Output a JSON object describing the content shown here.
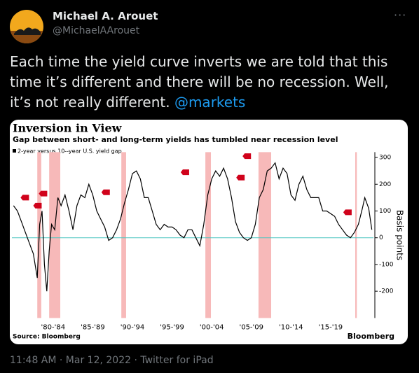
{
  "tweet": {
    "name": "Michael A. Arouet",
    "handle": "@MichaelAArouet",
    "text": "Each time the yield curve inverts we are told that this time it’s different and there will be no recession. Well, it’s not really different.",
    "link": "@markets",
    "footer": "11:48 AM · Mar 12, 2022 · Twitter for iPad"
  },
  "chart_data": {
    "type": "line",
    "title": "Inversion in View",
    "subtitle": "Gap between short- and long-term yields has tumbled near recession level",
    "ylabel": "Basis points",
    "source": "Source: Bloomberg",
    "brand": "Bloomberg",
    "xlim": [
      1976.8,
      2022.4
    ],
    "xticks": [
      {
        "value": 1982,
        "label": "'80-'84"
      },
      {
        "value": 1987,
        "label": "'85-'89"
      },
      {
        "value": 1992,
        "label": "'90-'94"
      },
      {
        "value": 1997,
        "label": "'95-'99"
      },
      {
        "value": 2002,
        "label": "'00-'04"
      },
      {
        "value": 2007,
        "label": "'05-'09"
      },
      {
        "value": 2012,
        "label": "'10-'14"
      },
      {
        "value": 2017,
        "label": "'15-'19"
      }
    ],
    "ylim": [
      -300,
      320
    ],
    "yticks": [
      300,
      200,
      100,
      0,
      -100,
      -200
    ],
    "zero_line_color": "#4fc6c0",
    "recession_color": "#f7b9b9",
    "recessions": [
      [
        1980.0,
        1980.5
      ],
      [
        1981.5,
        1982.9
      ],
      [
        1990.6,
        1991.2
      ],
      [
        2001.2,
        2001.9
      ],
      [
        2007.9,
        2009.5
      ],
      [
        2020.1,
        2020.3
      ]
    ],
    "series": [
      {
        "name": "2-year versus 10--year U.S. yield gap",
        "color": "#000000",
        "x": [
          1977,
          1977.5,
          1978,
          1978.5,
          1979,
          1979.5,
          1980,
          1980.3,
          1980.6,
          1980.9,
          1981.2,
          1981.5,
          1981.8,
          1982.2,
          1982.6,
          1983,
          1983.5,
          1984,
          1984.5,
          1985,
          1985.5,
          1986,
          1986.5,
          1987,
          1987.5,
          1988,
          1988.5,
          1989,
          1989.5,
          1990,
          1990.5,
          1991,
          1991.5,
          1992,
          1992.5,
          1993,
          1993.5,
          1994,
          1994.5,
          1995,
          1995.5,
          1996,
          1996.5,
          1997,
          1997.5,
          1998,
          1998.5,
          1999,
          1999.5,
          2000,
          2000.5,
          2001,
          2001.5,
          2002,
          2002.5,
          2003,
          2003.5,
          2004,
          2004.5,
          2005,
          2005.5,
          2006,
          2006.5,
          2007,
          2007.5,
          2008,
          2008.5,
          2009,
          2009.5,
          2010,
          2010.5,
          2011,
          2011.5,
          2012,
          2012.5,
          2013,
          2013.5,
          2014,
          2014.5,
          2015,
          2015.5,
          2016,
          2016.5,
          2017,
          2017.5,
          2018,
          2018.5,
          2019,
          2019.5,
          2020,
          2020.5,
          2021,
          2021.3,
          2021.8,
          2022.2
        ],
        "values": [
          120,
          100,
          60,
          20,
          -20,
          -60,
          -150,
          50,
          100,
          -100,
          -200,
          -50,
          50,
          30,
          150,
          120,
          160,
          100,
          30,
          120,
          160,
          150,
          200,
          160,
          100,
          70,
          40,
          -10,
          0,
          30,
          70,
          130,
          180,
          240,
          250,
          220,
          150,
          150,
          100,
          50,
          30,
          50,
          40,
          40,
          30,
          10,
          0,
          30,
          30,
          0,
          -30,
          50,
          160,
          220,
          250,
          230,
          260,
          220,
          150,
          60,
          20,
          0,
          -10,
          0,
          50,
          150,
          180,
          250,
          260,
          280,
          220,
          260,
          240,
          160,
          140,
          200,
          230,
          180,
          150,
          150,
          150,
          100,
          100,
          90,
          80,
          50,
          30,
          10,
          0,
          20,
          50,
          110,
          150,
          110,
          30
        ]
      }
    ],
    "markers": {
      "color": "#d0021b",
      "x": [
        1978.6,
        1980.2,
        1980.9,
        1988.8,
        1998.8,
        2005.8,
        2006.6,
        2019.3
      ],
      "values": [
        150,
        120,
        165,
        170,
        245,
        225,
        305,
        95
      ]
    }
  }
}
